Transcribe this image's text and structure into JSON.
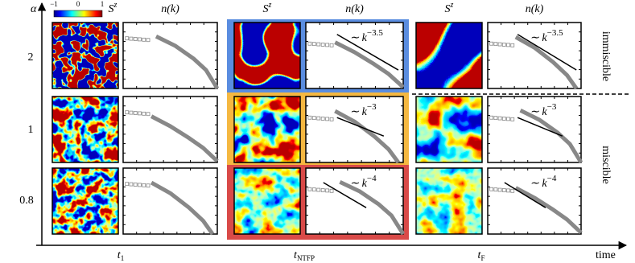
{
  "axes": {
    "y_label": "α",
    "x_label": "time",
    "rows": [
      "2",
      "1",
      "0.8"
    ]
  },
  "colorbar": {
    "ticks": [
      "−1",
      "0",
      "1"
    ]
  },
  "headers": {
    "spin": {
      "base": "S",
      "sup": "z"
    },
    "momentum": "n(k)"
  },
  "columns": [
    {
      "symbol": "t",
      "subscript": "1"
    },
    {
      "symbol": "t",
      "subscript": "NTFP"
    },
    {
      "symbol": "t",
      "subscript": "F"
    }
  ],
  "power_laws": [
    {
      "prefix": "∼ k",
      "exponent": "−3.5"
    },
    {
      "prefix": "∼ k",
      "exponent": "−3"
    },
    {
      "prefix": "∼ k",
      "exponent": "−4"
    }
  ],
  "regimes": [
    "immiscible",
    "miscible"
  ]
}
